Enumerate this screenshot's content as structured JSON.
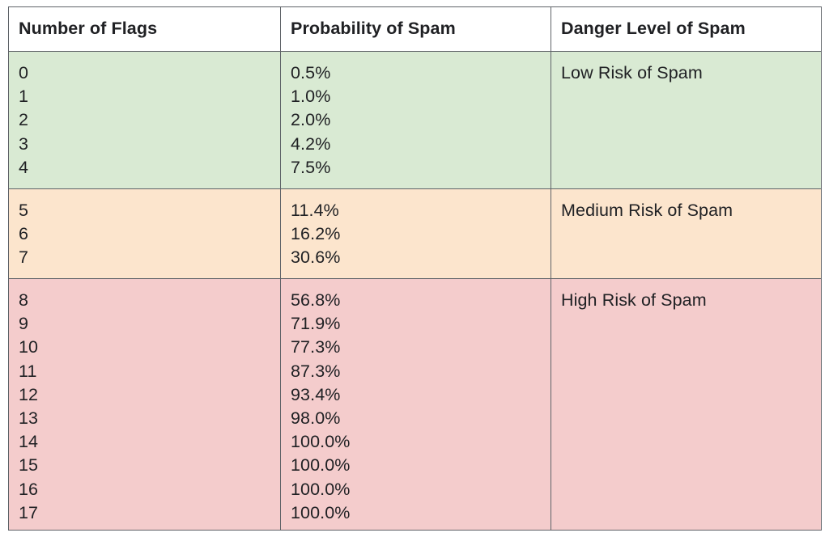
{
  "headers": [
    "Number of Flags",
    "Probability of Spam",
    "Danger Level of Spam"
  ],
  "groups": [
    {
      "level": "Low Risk of Spam",
      "color": "#d9ead3",
      "flags": [
        "0",
        "1",
        "2",
        "3",
        "4"
      ],
      "probabilities": [
        "0.5%",
        "1.0%",
        "2.0%",
        "4.2%",
        "7.5%"
      ]
    },
    {
      "level": "Medium Risk of Spam",
      "color": "#fce5cd",
      "flags": [
        "5",
        "6",
        "7"
      ],
      "probabilities": [
        "11.4%",
        "16.2%",
        "30.6%"
      ]
    },
    {
      "level": "High Risk of Spam",
      "color": "#f4cccc",
      "flags": [
        "8",
        "9",
        "10",
        "11",
        "12",
        "13",
        "14",
        "15",
        "16",
        "17"
      ],
      "probabilities": [
        "56.8%",
        "71.9%",
        "77.3%",
        "87.3%",
        "93.4%",
        "98.0%",
        "100.0%",
        "100.0%",
        "100.0%",
        "100.0%"
      ]
    }
  ]
}
